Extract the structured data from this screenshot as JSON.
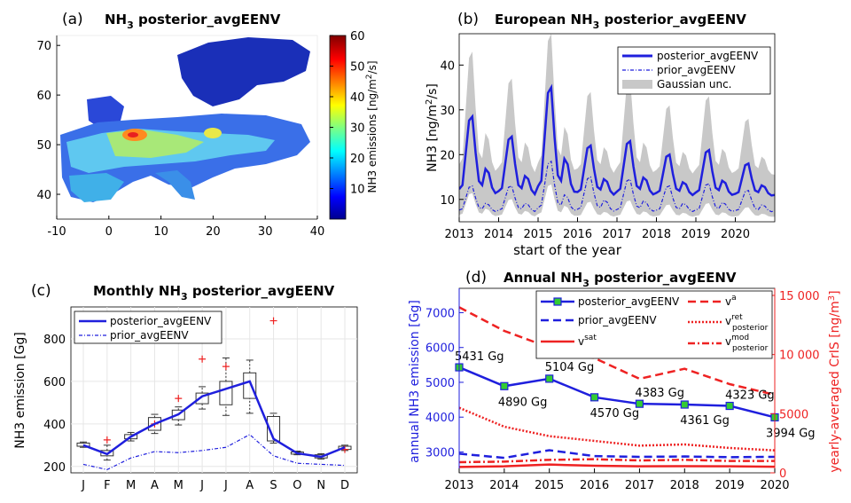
{
  "panels": {
    "a": {
      "letter": "(a)",
      "title_pre": "NH",
      "title_sub": "3",
      "title_post": " posterior_avgEENV"
    },
    "b": {
      "letter": "(b)",
      "title_pre": "European NH",
      "title_sub": "3",
      "title_post": " posterior_avgEENV"
    },
    "c": {
      "letter": "(c)",
      "title_pre": "Monthly NH",
      "title_sub": "3",
      "title_post": " posterior_avgEENV"
    },
    "d": {
      "letter": "(d)",
      "title_pre": "Annual NH",
      "title_sub": "3",
      "title_post": " posterior_avgEENV"
    }
  },
  "colors": {
    "posterior": "#1f1fdd",
    "prior": "#1f1fdd",
    "gaussian": "#c8c8c8",
    "red": "#ee2222",
    "marker": "#33cc33"
  },
  "chart_data": [
    {
      "id": "a",
      "type": "heatmap",
      "title": "NH3 posterior_avgEENV",
      "xlim": [
        -10,
        40
      ],
      "ylim": [
        35,
        72
      ],
      "xticks": [
        "-10",
        "0",
        "10",
        "20",
        "30",
        "40"
      ],
      "yticks": [
        "40",
        "50",
        "60",
        "70"
      ],
      "colorbar": {
        "label_pre": "NH3 emissions [ng/m",
        "label_sup": "2",
        "label_post": "/s]",
        "range": [
          0,
          60
        ],
        "ticks": [
          "10",
          "20",
          "30",
          "40",
          "50",
          "60"
        ]
      }
    },
    {
      "id": "b",
      "type": "line",
      "title": "European NH3 posterior_avgEENV",
      "xlabel": "start of the year",
      "ylabel_pre": "NH3 [ng/m",
      "ylabel_sup": "2",
      "ylabel_post": "/s]",
      "xlim": [
        2013,
        2021
      ],
      "ylim": [
        5,
        47
      ],
      "xticks": [
        "2013",
        "2014",
        "2015",
        "2016",
        "2017",
        "2018",
        "2019",
        "2020"
      ],
      "yticks": [
        "10",
        "20",
        "30",
        "40"
      ],
      "legend": [
        "posterior_avgEENV",
        "prior_avgEENV",
        "Gaussian unc."
      ],
      "peaks_posterior": [
        28.5,
        24,
        35,
        22,
        23,
        20,
        21,
        18
      ],
      "peaks_prior": [
        13,
        13,
        18.5,
        15,
        14.5,
        13,
        13.5,
        12
      ],
      "peaks_gauss_upper": [
        43,
        37,
        47,
        34,
        37,
        31,
        33,
        28
      ],
      "trough_posterior": 10.5,
      "trough_prior": 7,
      "trough_gauss_upper": 15,
      "trough_gauss_lower": 6
    },
    {
      "id": "c",
      "type": "line",
      "title": "Monthly NH3 posterior_avgEENV",
      "ylabel": "NH3 emission [Gg]",
      "categories": [
        "J",
        "F",
        "M",
        "A",
        "M",
        "J",
        "J",
        "A",
        "S",
        "O",
        "N",
        "D"
      ],
      "ylim": [
        170,
        950
      ],
      "yticks": [
        "200",
        "400",
        "600",
        "800"
      ],
      "legend": [
        "posterior_avgEENV",
        "prior_avgEENV"
      ],
      "series": [
        {
          "name": "posterior_avgEENV",
          "values": [
            300,
            258,
            340,
            400,
            445,
            530,
            565,
            600,
            330,
            262,
            245,
            290
          ]
        },
        {
          "name": "prior_avgEENV",
          "values": [
            210,
            185,
            240,
            270,
            265,
            275,
            290,
            350,
            250,
            215,
            210,
            205
          ]
        }
      ],
      "box_q1": [
        295,
        250,
        330,
        370,
        420,
        495,
        490,
        520,
        320,
        258,
        240,
        280
      ],
      "box_q3": [
        310,
        275,
        350,
        430,
        465,
        545,
        600,
        640,
        435,
        268,
        255,
        295
      ],
      "box_min": [
        290,
        230,
        320,
        355,
        395,
        470,
        440,
        450,
        310,
        255,
        235,
        275
      ],
      "box_max": [
        315,
        300,
        360,
        445,
        480,
        575,
        710,
        700,
        450,
        272,
        260,
        300
      ],
      "outliers": [
        [
          1,
          325
        ],
        [
          3,
          400
        ],
        [
          4,
          520
        ],
        [
          5,
          705
        ],
        [
          6,
          670
        ],
        [
          8,
          885
        ],
        [
          11,
          280
        ]
      ]
    },
    {
      "id": "d",
      "type": "line",
      "title": "Annual NH3 posterior_avgEENV",
      "xlabel": "year",
      "ylabel_left": "annual NH3 emission [Gg]",
      "ylabel_right_pre": "yearly-averaged CrIS [ng/m",
      "ylabel_right_sup": "3",
      "ylabel_right_post": "]",
      "x": [
        2013,
        2014,
        2015,
        2016,
        2017,
        2018,
        2019,
        2020
      ],
      "xticks": [
        "2013",
        "2014",
        "2015",
        "2016",
        "2017",
        "2018",
        "2019",
        "2020"
      ],
      "ylim_left": [
        2400,
        7700
      ],
      "yticks_left": [
        "3000",
        "4000",
        "5000",
        "6000",
        "7000"
      ],
      "ylim_right": [
        0,
        15600
      ],
      "yticks_right": [
        "0",
        "5000",
        "10 000",
        "15 000"
      ],
      "series": [
        {
          "name": "posterior_avgEENV",
          "axis": "left",
          "values": [
            5431,
            4890,
            5104,
            4570,
            4383,
            4361,
            4323,
            3994
          ]
        },
        {
          "name": "prior_avgEENV",
          "axis": "left",
          "values": [
            2950,
            2830,
            3050,
            2880,
            2860,
            2870,
            2850,
            2860
          ]
        },
        {
          "name": "v^a",
          "axis": "right",
          "values": [
            14000,
            12000,
            10600,
            9700,
            7950,
            8800,
            7500,
            6600
          ]
        },
        {
          "name": "v^ret_posterior",
          "axis": "right",
          "values": [
            5500,
            3900,
            3100,
            2700,
            2300,
            2400,
            2100,
            1900
          ]
        },
        {
          "name": "v^mod_posterior",
          "axis": "right",
          "values": [
            900,
            950,
            1100,
            1150,
            1050,
            1100,
            1000,
            1000
          ]
        },
        {
          "name": "v^sat",
          "axis": "right",
          "values": [
            500,
            550,
            700,
            600,
            550,
            560,
            550,
            520
          ]
        }
      ],
      "point_labels": [
        "5431 Gg",
        "4890 Gg",
        "5104 Gg",
        "4570 Gg",
        "4383 Gg",
        "4361 Gg",
        "4323 Gg",
        "3994 Gg"
      ],
      "legend": {
        "posterior": "posterior_avgEENV",
        "prior": "prior_avgEENV",
        "vsat": "v",
        "vsat_sup": "sat",
        "va": "v",
        "va_sup": "a",
        "vret": "v",
        "vret_sup": "ret",
        "vret_sub": "posterior",
        "vmod": "v",
        "vmod_sup": "mod",
        "vmod_sub": "posterior"
      }
    }
  ]
}
